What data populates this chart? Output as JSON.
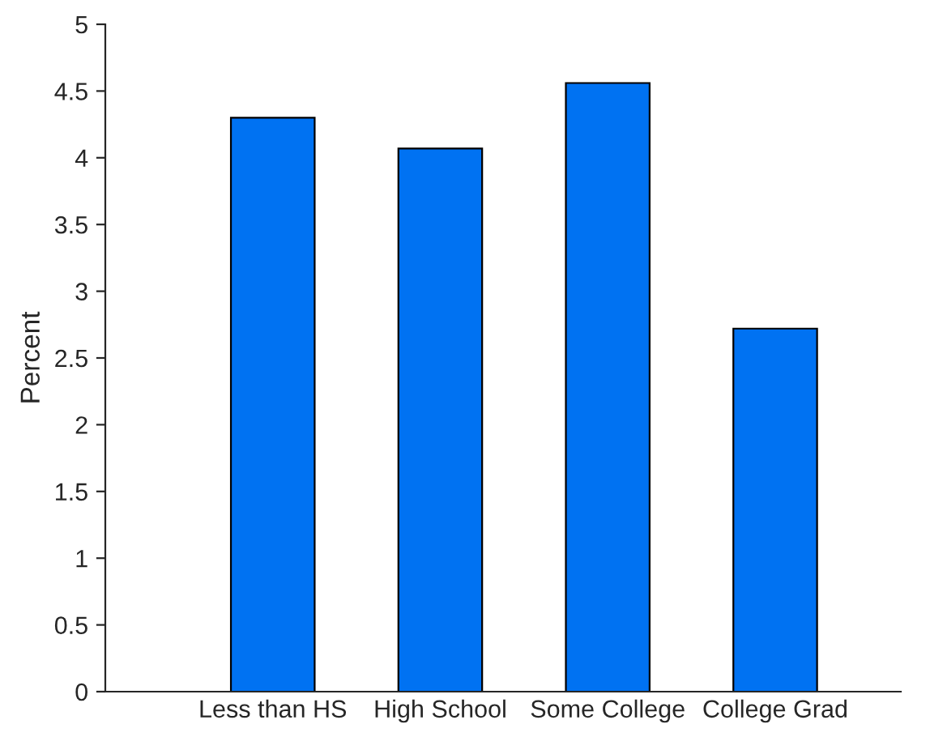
{
  "chart_data": {
    "type": "bar",
    "ylabel": "Percent",
    "categories": [
      "Less than HS",
      "High School",
      "Some College",
      "College Grad"
    ],
    "values": [
      4.3,
      4.07,
      4.56,
      2.72
    ],
    "color": "#0072f2",
    "ylim": [
      0,
      5
    ],
    "yticks": [
      0,
      0.5,
      1,
      1.5,
      2,
      2.5,
      3,
      3.5,
      4,
      4.5,
      5
    ],
    "grid": false,
    "legend": false
  }
}
